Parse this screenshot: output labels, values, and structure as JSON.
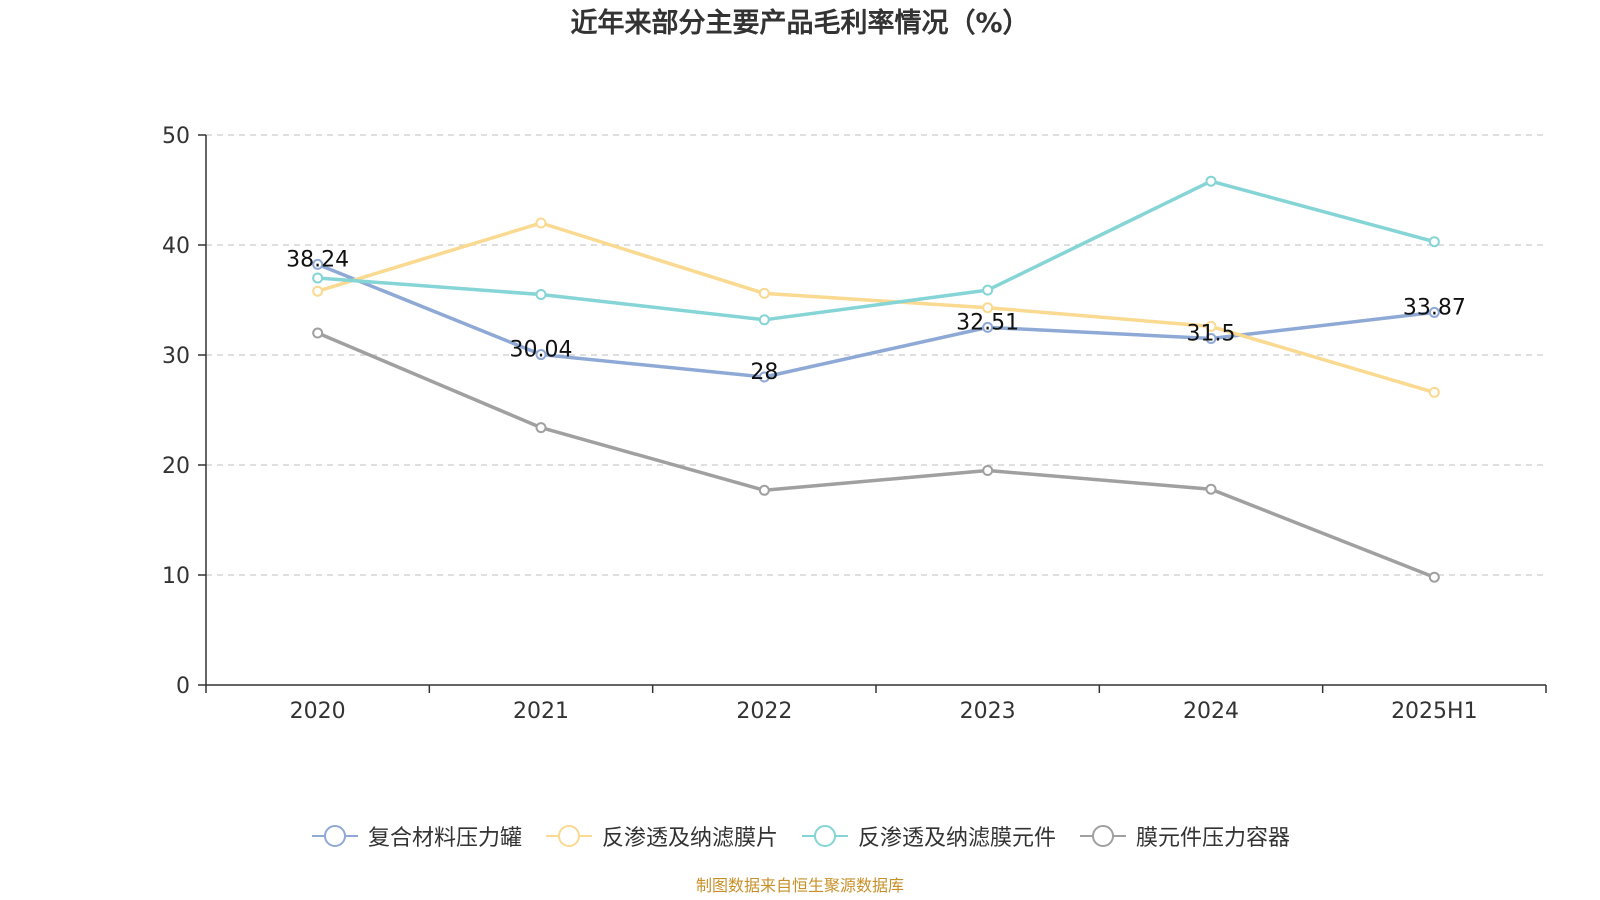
{
  "chart_data": {
    "type": "line",
    "title": "近年来部分主要产品毛利率情况（%）",
    "categories": [
      "2020",
      "2021",
      "2022",
      "2023",
      "2024",
      "2025H1"
    ],
    "ylim": [
      0,
      50
    ],
    "yticks": [
      0,
      10,
      20,
      30,
      40,
      50
    ],
    "grid": true,
    "legend_position": "bottom",
    "series": [
      {
        "name": "复合材料压力罐",
        "color": "#8fa9d6",
        "values": [
          38.24,
          30.04,
          28,
          32.51,
          31.5,
          33.87
        ],
        "labels": [
          "38.24",
          "30.04",
          "28",
          "32.51",
          "31.5",
          "33.87"
        ]
      },
      {
        "name": "反渗透及纳滤膜片",
        "color": "#fad990",
        "values": [
          35.8,
          42.0,
          35.6,
          34.3,
          32.6,
          26.6
        ]
      },
      {
        "name": "反渗透及纳滤膜元件",
        "color": "#85d4d6",
        "values": [
          37.0,
          35.5,
          33.2,
          35.9,
          45.8,
          40.3
        ]
      },
      {
        "name": "膜元件压力容器",
        "color": "#a0a0a0",
        "values": [
          32.0,
          23.4,
          17.7,
          19.5,
          17.8,
          9.8
        ]
      }
    ]
  },
  "source_note": "制图数据来自恒生聚源数据库",
  "source_color": "#c8902a"
}
